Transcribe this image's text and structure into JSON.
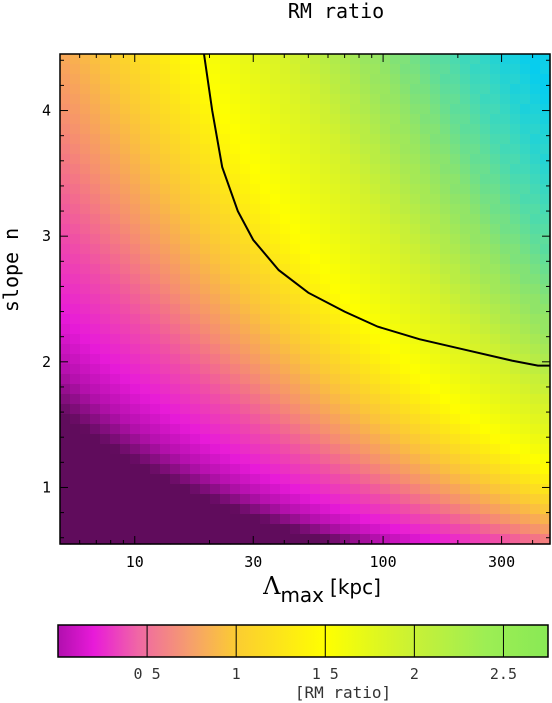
{
  "chart_data": {
    "type": "heatmap",
    "title": "RM ratio",
    "ylabel": "slope n",
    "xlabel": {
      "symbol": "Λ",
      "subscript": "max",
      "unit": "[kpc]"
    },
    "x_scale": "log",
    "xlim": [
      5.0,
      470.0
    ],
    "ylim": [
      0.55,
      4.45
    ],
    "x_ticks": [
      {
        "value": 10,
        "label": "10"
      },
      {
        "value": 30,
        "label": "30"
      },
      {
        "value": 100,
        "label": "100"
      },
      {
        "value": 300,
        "label": "300"
      }
    ],
    "y_ticks": [
      {
        "value": 1,
        "label": "1"
      },
      {
        "value": 2,
        "label": "2"
      },
      {
        "value": 3,
        "label": "3"
      },
      {
        "value": 4,
        "label": "4"
      }
    ],
    "contour": {
      "level": 1.5,
      "points": [
        [
          19.0,
          4.45
        ],
        [
          20.5,
          4.0
        ],
        [
          22.5,
          3.55
        ],
        [
          26.0,
          3.2
        ],
        [
          30.0,
          2.97
        ],
        [
          38.0,
          2.73
        ],
        [
          50.0,
          2.55
        ],
        [
          70.0,
          2.4
        ],
        [
          95.0,
          2.28
        ],
        [
          140.0,
          2.18
        ],
        [
          210.0,
          2.1
        ],
        [
          330.0,
          2.01
        ],
        [
          420.0,
          1.97
        ],
        [
          470.0,
          1.97
        ]
      ]
    },
    "colorbar": {
      "label": "[RM ratio]",
      "range": [
        0.0,
        2.75
      ],
      "ticks": [
        {
          "value": 0.5,
          "label": "0 5"
        },
        {
          "value": 1.0,
          "label": "1"
        },
        {
          "value": 1.5,
          "label": "1 5"
        },
        {
          "value": 2.0,
          "label": "2"
        },
        {
          "value": 2.5,
          "label": "2.5"
        }
      ],
      "stops": [
        {
          "value": 0.0,
          "color": "#b10fae"
        },
        {
          "value": 0.2,
          "color": "#e81ad9"
        },
        {
          "value": 0.45,
          "color": "#f067a5"
        },
        {
          "value": 0.75,
          "color": "#f6a06b"
        },
        {
          "value": 1.0,
          "color": "#fbcc32"
        },
        {
          "value": 1.5,
          "color": "#ffff00"
        },
        {
          "value": 2.0,
          "color": "#c8f136"
        },
        {
          "value": 2.4,
          "color": "#9dee54"
        },
        {
          "value": 2.75,
          "color": "#89e955"
        }
      ]
    },
    "field_colormap": [
      {
        "value": 0.0,
        "color": "#600c5c"
      },
      {
        "value": 0.2,
        "color": "#b510ad"
      },
      {
        "value": 0.4,
        "color": "#e81ad9"
      },
      {
        "value": 0.65,
        "color": "#f04ea7"
      },
      {
        "value": 0.9,
        "color": "#f6906f"
      },
      {
        "value": 1.15,
        "color": "#fbc53a"
      },
      {
        "value": 1.5,
        "color": "#ffff00"
      },
      {
        "value": 1.85,
        "color": "#d4f22c"
      },
      {
        "value": 2.2,
        "color": "#8ee46a"
      },
      {
        "value": 2.5,
        "color": "#42d9b8"
      },
      {
        "value": 2.75,
        "color": "#07cdee"
      }
    ]
  }
}
